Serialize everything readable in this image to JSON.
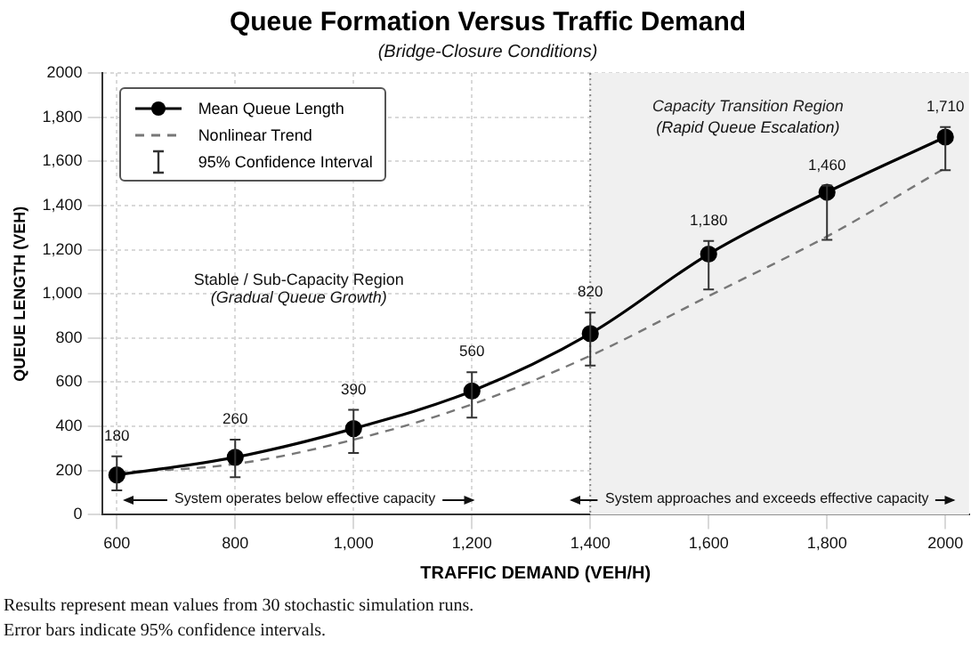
{
  "chart_data": {
    "type": "line",
    "title": "Queue Formation Versus Traffic Demand",
    "subtitle": "(Bridge-Closure Conditions)",
    "xlabel": "TRAFFIC DEMAND (VEH/H)",
    "ylabel": "QUEUE LENGTH (VEH)",
    "x": [
      600,
      800,
      1000,
      1200,
      1400,
      1600,
      1800,
      2000
    ],
    "series": [
      {
        "name": "Mean Queue Length",
        "color": "#000000",
        "marker": "circle",
        "line_style": "solid",
        "values": [
          180,
          260,
          390,
          560,
          820,
          1180,
          1460,
          1710
        ],
        "errors": [
          [
            110,
            265
          ],
          [
            170,
            340
          ],
          [
            280,
            475
          ],
          [
            440,
            645
          ],
          [
            675,
            915
          ],
          [
            1020,
            1240
          ],
          [
            1245,
            1490
          ],
          [
            1560,
            1755
          ]
        ],
        "value_labels": [
          "180",
          "260",
          "390",
          "560",
          "820",
          "1,180",
          "1,460",
          "1,710"
        ]
      },
      {
        "name": "Nonlinear Trend",
        "color": "#777777",
        "marker": "none",
        "line_style": "dashed",
        "values": [
          190,
          230,
          340,
          500,
          720,
          990,
          1260,
          1570
        ]
      }
    ],
    "xlim": [
      575,
      2040
    ],
    "xticks": [
      {
        "value": 600,
        "label": "600"
      },
      {
        "value": 800,
        "label": "800"
      },
      {
        "value": 1000,
        "label": "1,000"
      },
      {
        "value": 1200,
        "label": "1,200"
      },
      {
        "value": 1400,
        "label": "1,400"
      },
      {
        "value": 1600,
        "label": "1,600"
      },
      {
        "value": 1800,
        "label": "1,800"
      },
      {
        "value": 2000,
        "label": "2000"
      }
    ],
    "ylim": [
      0,
      2000
    ],
    "yticks": [
      0,
      200,
      400,
      600,
      800,
      {
        "value": 1000,
        "label": "1,000"
      },
      {
        "value": 1200,
        "label": "1,200"
      },
      {
        "value": 1400,
        "label": "1,400"
      },
      {
        "value": 1600,
        "label": "1,600"
      },
      {
        "value": 1800,
        "label": "1,800"
      },
      2000
    ],
    "bands": [
      {
        "axis": "x",
        "from": 1400,
        "to": 2040,
        "color": "#f0f0f0",
        "label": "Capacity Transition Region"
      }
    ],
    "ref_lines": [
      {
        "axis": "x",
        "value": 1400,
        "color": "#888888",
        "line_style": "dotted"
      }
    ],
    "annotations": [
      "95% Confidence Interval",
      "Stable / Sub-Capacity Region",
      "(Gradual Queue Growth)",
      "(Rapid Queue Escalation)",
      "System operates below effective capacity",
      "System approaches and exceeds effective capacity",
      "Results represent mean values from 30 stochastic simulation runs.",
      "Error bars indicate 95% confidence intervals."
    ],
    "grid": true,
    "legend": "top left"
  }
}
